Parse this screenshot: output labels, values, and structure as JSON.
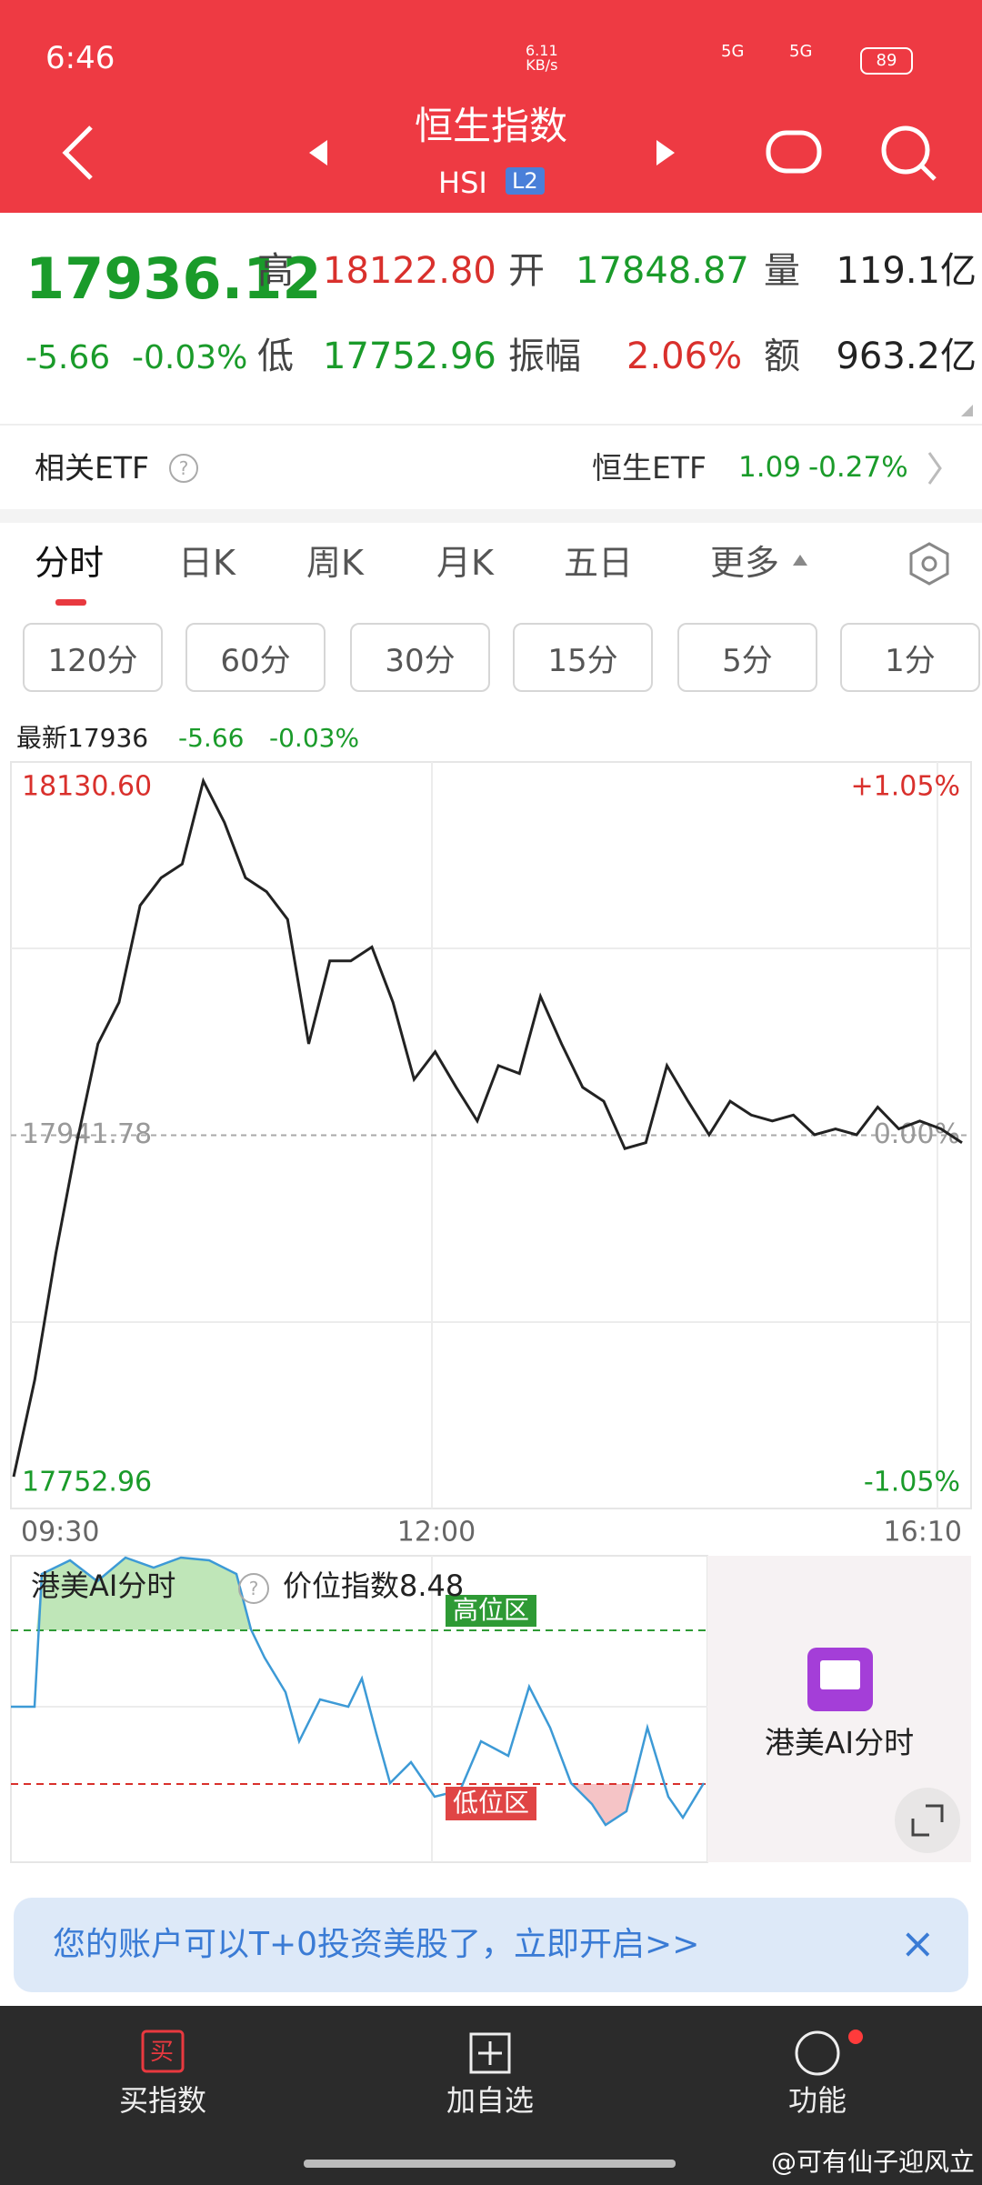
{
  "status_bar": {
    "time": "6:46",
    "speed": "6.11",
    "speed_unit": "KB/s",
    "network": [
      "5G",
      "5G"
    ],
    "battery": "89"
  },
  "header": {
    "title": "恒生指数",
    "code": "HSI",
    "badge": "L2"
  },
  "quote": {
    "price": "17936.12",
    "change": "-5.66",
    "change_pct": "-0.03%",
    "fields": [
      {
        "label": "高",
        "value": "18122.80"
      },
      {
        "label": "开",
        "value": "17848.87"
      },
      {
        "label": "量",
        "value": "119.1亿"
      },
      {
        "label": "低",
        "value": "17752.96"
      },
      {
        "label": "振幅",
        "value": "2.06%"
      },
      {
        "label": "额",
        "value": "963.2亿"
      }
    ]
  },
  "etf": {
    "label": "相关ETF",
    "help": "?",
    "name": "恒生ETF",
    "price": "1.09",
    "change_pct": "-0.27%"
  },
  "tabs": [
    "分时",
    "日K",
    "周K",
    "月K",
    "五日",
    "更多"
  ],
  "intervals": [
    "120分",
    "60分",
    "30分",
    "15分",
    "5分",
    "1分"
  ],
  "chart": {
    "latest": "最新17936",
    "change": "-5.66",
    "change_pct": "-0.03%",
    "ylim": [
      17752.96,
      18130.6
    ],
    "yticks": [
      {
        "value": 18130.6,
        "label": "18130.60"
      },
      {
        "value": 17941.78,
        "label": "17941.78"
      },
      {
        "value": 17752.96,
        "label": "17752.96"
      }
    ],
    "pct_labels": [
      "+1.05%",
      "0.00%",
      "-1.05%"
    ],
    "x_labels": [
      "09:30",
      "12:00",
      "16:10"
    ],
    "values": [
      17769,
      17818,
      17882,
      17938,
      17988,
      18009,
      18058,
      18072,
      18079,
      18121,
      18100,
      18072,
      18065,
      18051,
      17988,
      18030,
      18030,
      18037,
      18009,
      17970,
      17984,
      17966,
      17949,
      17977,
      17973,
      18012,
      17988,
      17966,
      17959,
      17935,
      17938,
      17977,
      17959,
      17942,
      17959,
      17952,
      17949,
      17952,
      17942,
      17945,
      17942,
      17956,
      17945,
      17949,
      17945,
      17938
    ]
  },
  "ai": {
    "title": "港美AI分时",
    "help": "?",
    "index": "价位指数8.48",
    "high_zone": "高位区",
    "low_zone": "低位区",
    "panel": "港美AI分时"
  },
  "banner": {
    "text": "您的账户可以T+0投资美股了，立即开启>>",
    "close": "×"
  },
  "nav": {
    "items": [
      "买指数",
      "加自选",
      "功能"
    ],
    "buy_icon": "买",
    "watermark": "@可有仙子迎风立"
  }
}
